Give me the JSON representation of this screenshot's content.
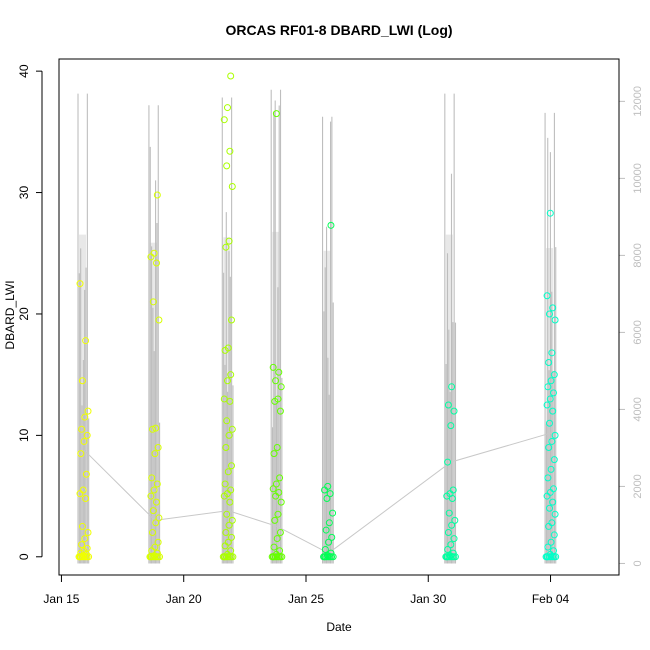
{
  "chart_data": {
    "type": "scatter",
    "title": "ORCAS RF01-8 DBARD_LWI (Log)",
    "xlabel": "Date",
    "ylabel": "DBARD_LWI",
    "x_ticks": [
      "Jan 15",
      "Jan 20",
      "Jan 25",
      "Jan 30",
      "Feb 04"
    ],
    "x_tick_days": [
      15,
      20,
      25,
      30,
      35
    ],
    "xlim": [
      14.9,
      37.8
    ],
    "y_ticks": [
      0,
      10,
      20,
      30,
      40
    ],
    "ylim": [
      -1.5,
      41.0
    ],
    "y2_ticks": [
      0,
      2000,
      4000,
      6000,
      8000,
      10000,
      12000
    ],
    "y2lim": [
      -300,
      13100
    ],
    "colors": {
      "altitude": "#bebebe",
      "trend": "#c8c8c8",
      "flight_colors": [
        "#ffff00",
        "#ccff00",
        "#99ff00",
        "#55ff00",
        "#00ff44",
        "#00ff99",
        "#00ffcc"
      ]
    },
    "flights": [
      {
        "day": 15.8,
        "color": "#f0ff00",
        "altitude_max": 12200,
        "mean": 8.8,
        "points": [
          0,
          0.1,
          0.2,
          0.3,
          0.5,
          0.7,
          1.0,
          1.5,
          2.0,
          2.5,
          4.8,
          5.2,
          5.5,
          6.8,
          8.5,
          9.5,
          10.0,
          10.5,
          11.5,
          12.0,
          14.5,
          17.8,
          22.5
        ]
      },
      {
        "day": 18.7,
        "color": "#d8ff00",
        "altitude_max": 11900,
        "mean": 3.0,
        "points": [
          0,
          0.1,
          0.3,
          0.5,
          0.8,
          1.2,
          2.0,
          2.8,
          3.2,
          3.8,
          4.5,
          5.0,
          5.5,
          6.0,
          6.5,
          8.5,
          9.0,
          10.5,
          10.6,
          19.5,
          21.0,
          24.2,
          24.7,
          25.0,
          29.8
        ]
      },
      {
        "day": 21.7,
        "color": "#aaff00",
        "altitude_max": 12100,
        "mean": 3.8,
        "points": [
          0,
          0.2,
          0.5,
          0.9,
          1.2,
          1.6,
          2.0,
          2.6,
          3.0,
          3.5,
          4.5,
          5.0,
          5.2,
          5.5,
          6.0,
          7.0,
          7.5,
          9.0,
          10.0,
          10.5,
          11.2,
          12.8,
          13.0,
          14.5,
          15.0,
          17.0,
          17.2,
          19.5,
          25.5,
          26.0,
          30.5,
          32.2,
          33.4,
          36.0,
          37.0,
          39.6
        ]
      },
      {
        "day": 23.7,
        "color": "#66ff00",
        "altitude_max": 12300,
        "mean": 2.5,
        "points": [
          0,
          0.2,
          0.5,
          0.8,
          1.5,
          2.0,
          3.0,
          3.5,
          4.5,
          5.0,
          5.3,
          5.6,
          6.0,
          6.5,
          8.5,
          9.0,
          12.0,
          12.8,
          13.0,
          14.0,
          14.5,
          15.2,
          15.6,
          36.5
        ]
      },
      {
        "day": 25.8,
        "color": "#00ff55",
        "altitude_max": 11600,
        "mean": 0.3,
        "points": [
          0,
          0.1,
          0.3,
          0.6,
          1.2,
          1.6,
          2.2,
          2.8,
          3.6,
          4.8,
          5.2,
          5.5,
          5.8,
          27.3
        ]
      },
      {
        "day": 30.8,
        "color": "#00ffa0",
        "altitude_max": 12200,
        "mean": 7.8,
        "points": [
          0,
          0.1,
          0.3,
          0.6,
          1.0,
          1.5,
          2.0,
          2.6,
          3.0,
          3.6,
          4.8,
          5.0,
          5.2,
          5.5,
          7.8,
          10.8,
          12.0,
          12.5,
          14.0
        ]
      },
      {
        "day": 34.9,
        "color": "#00ffc8",
        "altitude_max": 11700,
        "mean": 10.2,
        "points": [
          0,
          0.2,
          0.5,
          0.8,
          1.2,
          1.8,
          2.5,
          2.8,
          3.5,
          4.0,
          4.5,
          5.0,
          5.3,
          5.6,
          6.5,
          7.2,
          8.0,
          9.0,
          9.5,
          10.0,
          11.0,
          12.0,
          12.5,
          13.0,
          13.5,
          14.0,
          14.5,
          15.0,
          16.0,
          16.8,
          19.5,
          20.0,
          20.5,
          21.5,
          28.3
        ]
      }
    ]
  }
}
